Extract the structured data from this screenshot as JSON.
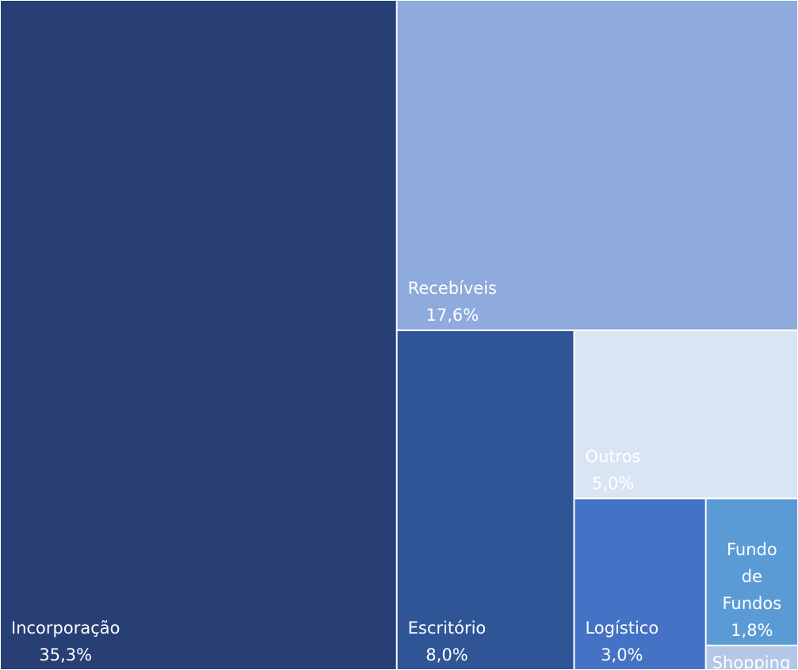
{
  "chart_data": {
    "type": "treemap",
    "categories": [
      "Incorporação",
      "Recebíveis",
      "Escritório",
      "Outros",
      "Logístico",
      "Fundo de Fundos",
      "Shopping"
    ],
    "values": [
      35.3,
      17.6,
      8.0,
      5.0,
      3.0,
      1.8,
      0.3
    ],
    "value_labels": [
      "35,3%",
      "17,6%",
      "8,0%",
      "5,0%",
      "3,0%",
      "1,8%",
      null
    ],
    "colors": [
      "#283f75",
      "#8faadc",
      "#2f5597",
      "#dae5f3",
      "#4472c4",
      "#5b9bd5",
      "#b4c7e7"
    ]
  }
}
